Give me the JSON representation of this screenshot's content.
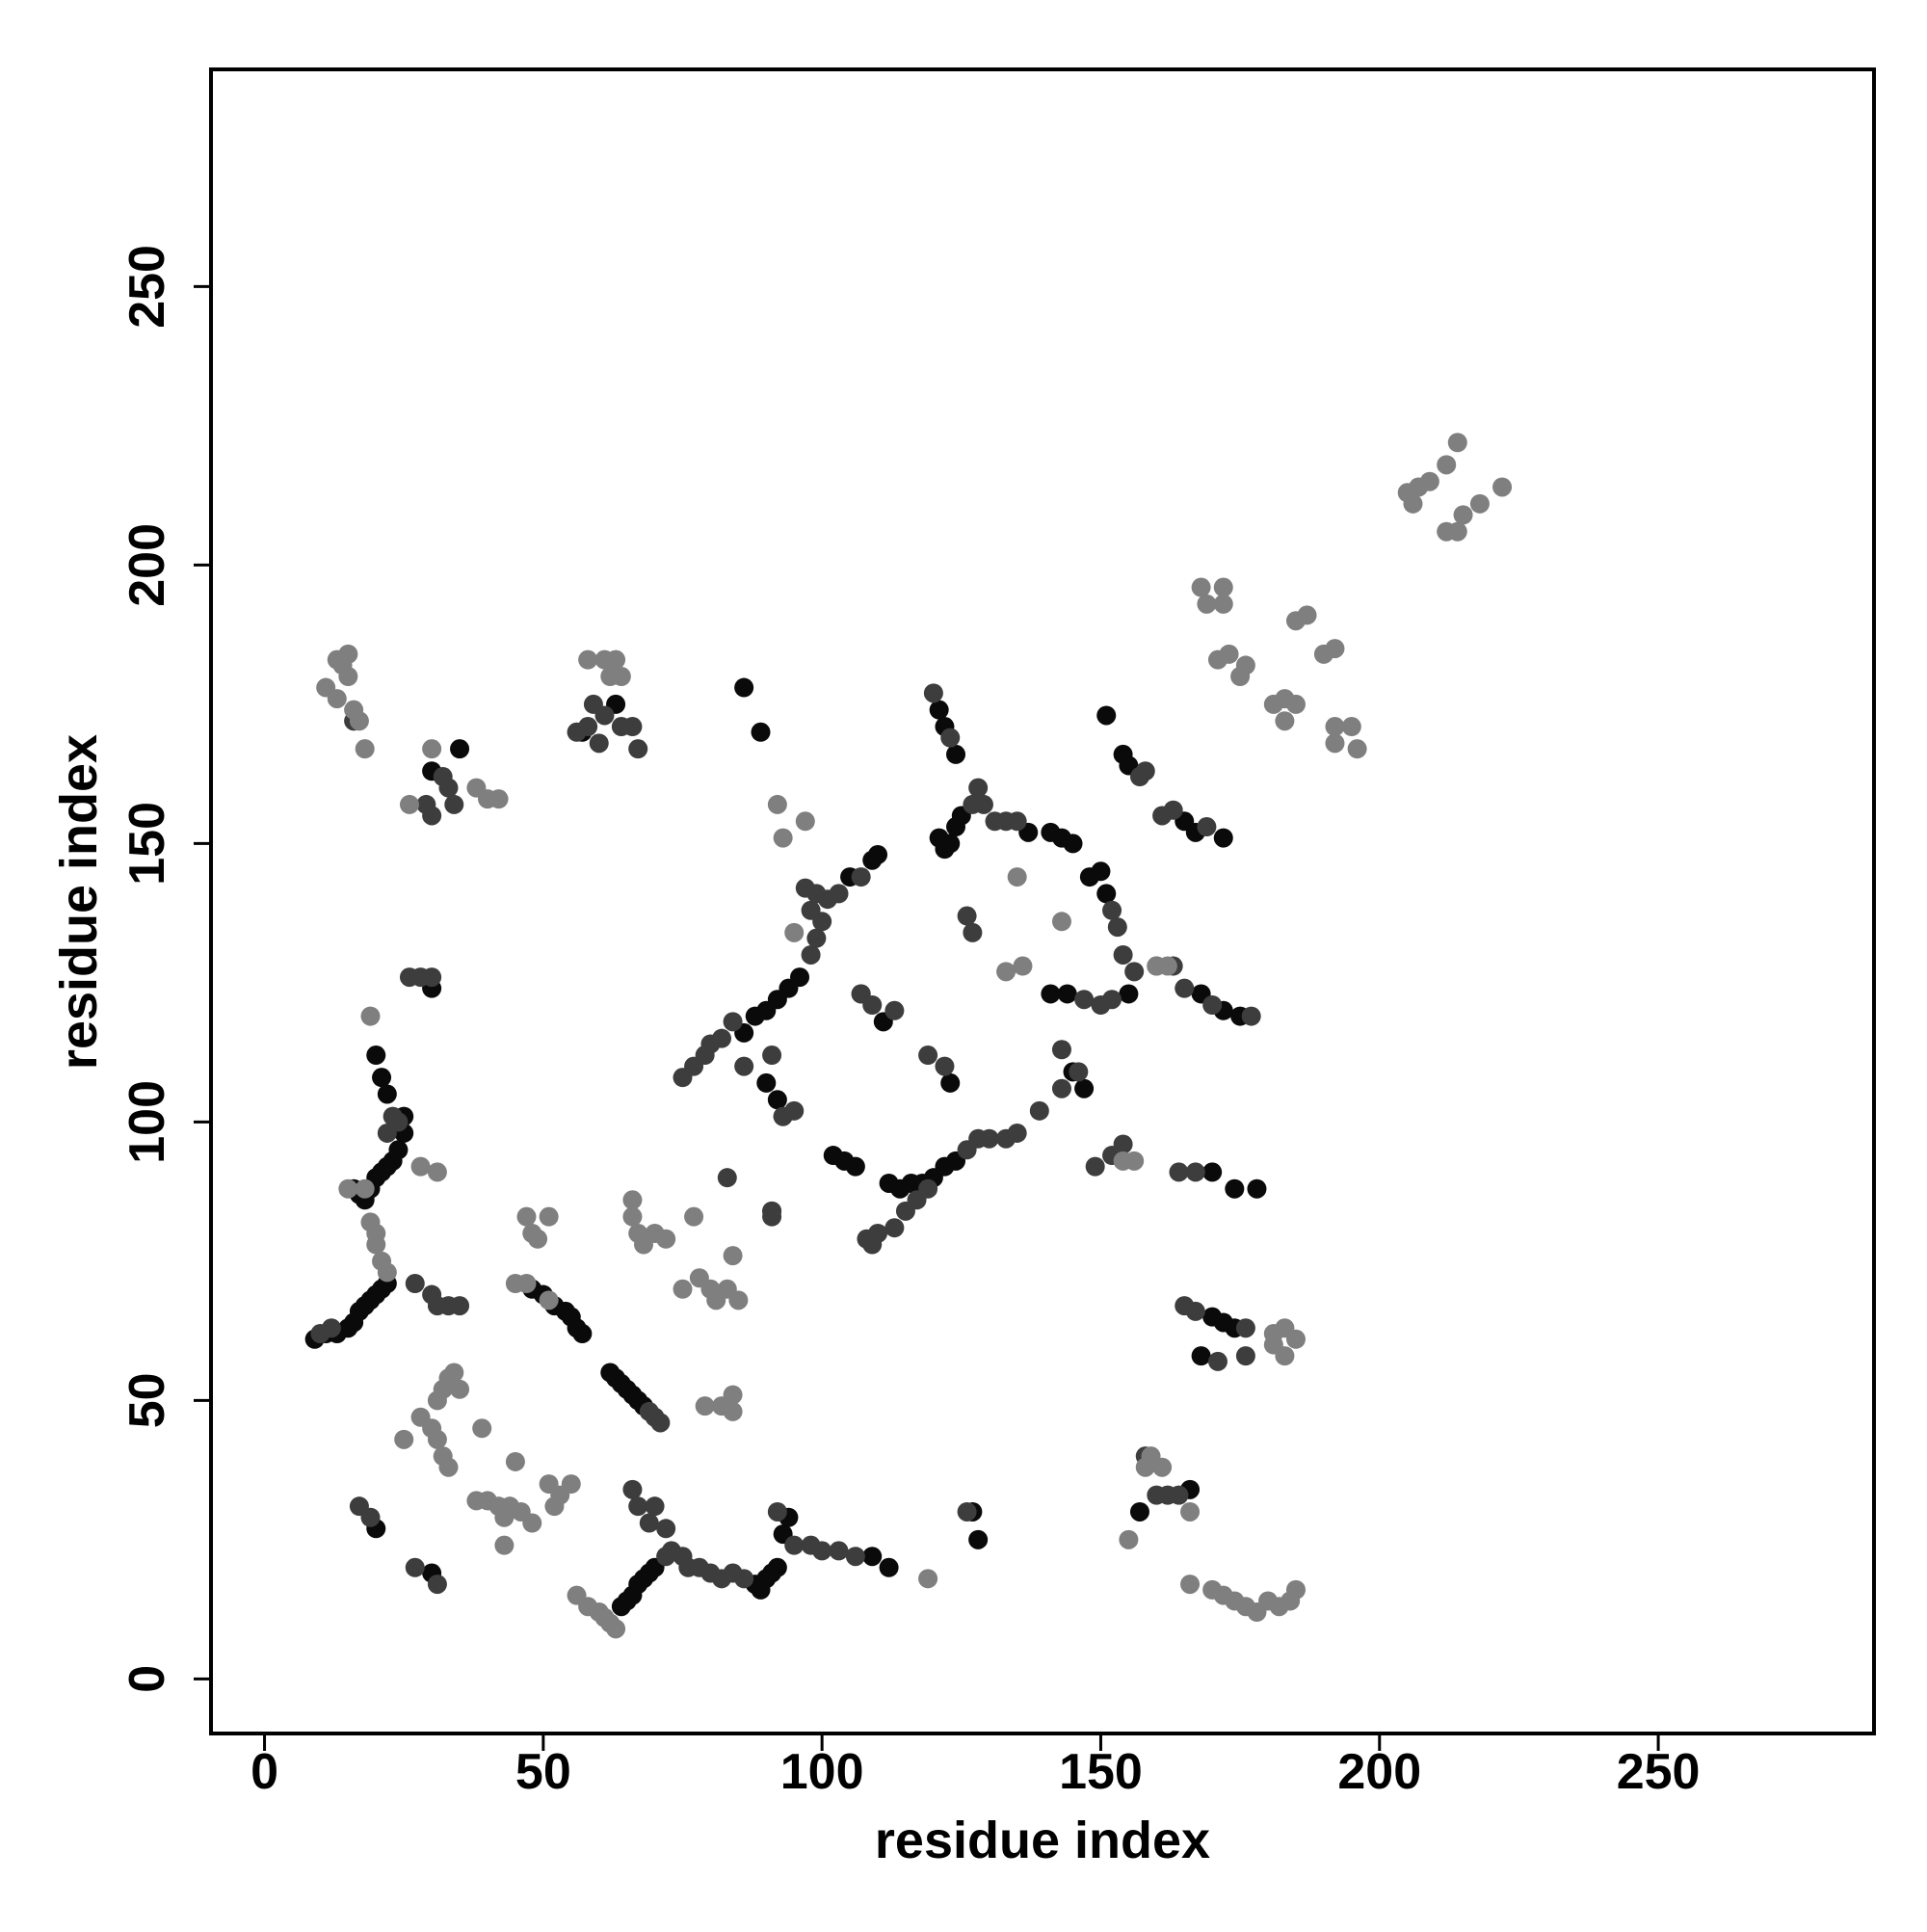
{
  "chart_data": {
    "type": "scatter",
    "xlabel": "residue index",
    "ylabel": "residue index",
    "xlim": [
      -9.6,
      288.7
    ],
    "ylim": [
      -9.8,
      289
    ],
    "xticks": [
      0,
      50,
      100,
      150,
      200,
      250
    ],
    "yticks": [
      0,
      50,
      100,
      150,
      200,
      250
    ],
    "series": [
      {
        "color": "#0a0a0a",
        "x": [
          9,
          11,
          13,
          15,
          16,
          17,
          18,
          19,
          20,
          21,
          22,
          16,
          17,
          18,
          19,
          20,
          21,
          22,
          23,
          24,
          25,
          25,
          22,
          21,
          20,
          30,
          30,
          35,
          57,
          63,
          48,
          50,
          52,
          54,
          55,
          56,
          57,
          62,
          63,
          64,
          65,
          66,
          67,
          68,
          64,
          65,
          66,
          67,
          68,
          69,
          70,
          88,
          89,
          90,
          91,
          92,
          93,
          94,
          86,
          89,
          90,
          92,
          93,
          86,
          88,
          90,
          92,
          94,
          96,
          102,
          104,
          106,
          112,
          114,
          116,
          118,
          120,
          122,
          124,
          105,
          109,
          121,
          122,
          124,
          121,
          122,
          123,
          124,
          125,
          137,
          141,
          143,
          145,
          141,
          144,
          148,
          150,
          151,
          155,
          151,
          154,
          155,
          165,
          167,
          172,
          168,
          172,
          175,
          170,
          174,
          178,
          170,
          172,
          174,
          168,
          166,
          157,
          127,
          128,
          30,
          20,
          109,
          112,
          110,
          123,
          107,
          111,
          145,
          147
        ],
        "values": [
          61,
          62,
          62,
          63,
          64,
          66,
          67,
          68,
          69,
          70,
          71,
          88,
          87,
          86,
          88,
          90,
          91,
          92,
          93,
          95,
          98,
          101,
          105,
          108,
          112,
          124,
          163,
          167,
          170,
          175,
          70,
          69,
          67,
          66,
          65,
          63,
          62,
          55,
          54,
          53,
          52,
          51,
          50,
          49,
          13,
          14,
          15,
          17,
          18,
          19,
          20,
          17,
          16,
          18,
          19,
          20,
          26,
          29,
          178,
          170,
          107,
          104,
          101,
          116,
          119,
          120,
          122,
          124,
          126,
          94,
          93,
          92,
          89,
          88,
          89,
          89,
          90,
          92,
          93,
          144,
          147,
          174,
          171,
          166,
          151,
          149,
          150,
          153,
          155,
          152,
          152,
          151,
          150,
          123,
          123,
          144,
          145,
          141,
          123,
          173,
          166,
          164,
          154,
          152,
          151,
          123,
          120,
          119,
          91,
          88,
          88,
          65,
          64,
          63,
          58,
          34,
          30,
          30,
          25,
          19,
          27,
          22,
          20,
          148,
          107,
          123,
          118,
          109,
          106
        ]
      },
      {
        "color": "#3d3d3d",
        "x": [
          12,
          10,
          23,
          24,
          22,
          26,
          28,
          30,
          30,
          31,
          27,
          33,
          35,
          16,
          29,
          30,
          32,
          33,
          34,
          56,
          58,
          59,
          61,
          64,
          66,
          67,
          60,
          69,
          70,
          71,
          17,
          19,
          27,
          31,
          66,
          67,
          69,
          70,
          72,
          72,
          73,
          75,
          76,
          78,
          80,
          82,
          84,
          86,
          95,
          98,
          100,
          103,
          106,
          91,
          92,
          75,
          77,
          79,
          80,
          82,
          84,
          98,
          99,
          100,
          98,
          99,
          101,
          103,
          107,
          86,
          91,
          93,
          95,
          97,
          108,
          110,
          126,
          128,
          130,
          133,
          135,
          139,
          143,
          107,
          109,
          113,
          115,
          117,
          119,
          109,
          113,
          119,
          122,
          120,
          123,
          127,
          128,
          129,
          131,
          133,
          135,
          126,
          127,
          152,
          153,
          154,
          156,
          152,
          150,
          147,
          143,
          146,
          149,
          152,
          154,
          157,
          158,
          161,
          163,
          169,
          160,
          163,
          165,
          170,
          177,
          164,
          167,
          165,
          167,
          176,
          171,
          176,
          158,
          160,
          162,
          164,
          126,
          91,
          91,
          83
        ],
        "values": [
          63,
          62,
          101,
          100,
          98,
          126,
          126,
          126,
          69,
          67,
          71,
          67,
          67,
          172,
          157,
          155,
          162,
          160,
          157,
          170,
          171,
          175,
          173,
          171,
          171,
          167,
          168,
          48,
          47,
          46,
          31,
          29,
          20,
          17,
          34,
          31,
          28,
          31,
          27,
          22,
          23,
          22,
          20,
          20,
          19,
          18,
          19,
          18,
          24,
          24,
          23,
          23,
          22,
          84,
          30,
          108,
          110,
          112,
          114,
          115,
          118,
          130,
          133,
          136,
          138,
          141,
          140,
          141,
          144,
          110,
          112,
          101,
          102,
          142,
          79,
          80,
          95,
          97,
          97,
          97,
          98,
          102,
          106,
          123,
          121,
          120,
          84,
          86,
          88,
          78,
          81,
          112,
          110,
          177,
          169,
          157,
          160,
          157,
          154,
          154,
          154,
          137,
          134,
          138,
          135,
          130,
          127,
          122,
          121,
          122,
          113,
          109,
          92,
          94,
          96,
          162,
          163,
          155,
          156,
          153,
          128,
          128,
          124,
          121,
          119,
          91,
          91,
          67,
          66,
          63,
          57,
          58,
          40,
          33,
          33,
          33,
          30,
          83,
          84,
          90
        ]
      },
      {
        "color": "#7f7f7f",
        "x": [
          19,
          20,
          20,
          21,
          22,
          18,
          15,
          19,
          28,
          31,
          11,
          13,
          14,
          15,
          13,
          15,
          16,
          17,
          18,
          26,
          30,
          38,
          40,
          42,
          45,
          47,
          51,
          58,
          61,
          63,
          62,
          64,
          47,
          48,
          51,
          49,
          66,
          67,
          68,
          70,
          72,
          66,
          77,
          75,
          78,
          80,
          81,
          83,
          85,
          84,
          79,
          82,
          84,
          84,
          28,
          30,
          31,
          32,
          33,
          31,
          32,
          33,
          34,
          35,
          25,
          39,
          38,
          40,
          42,
          43,
          44,
          46,
          48,
          43,
          45,
          51,
          53,
          55,
          52,
          56,
          58,
          60,
          61,
          62,
          63,
          119,
          135,
          133,
          136,
          143,
          154,
          160,
          162,
          158,
          159,
          161,
          155,
          166,
          166,
          170,
          172,
          174,
          176,
          178,
          180,
          182,
          184,
          185,
          183,
          185,
          181,
          183,
          181,
          156,
          168,
          169,
          172,
          172,
          171,
          173,
          176,
          175,
          181,
          183,
          183,
          185,
          185,
          187,
          190,
          192,
          192,
          195,
          192,
          196,
          205,
          207,
          209,
          212,
          214,
          212,
          214,
          215,
          218,
          222,
          206,
          95,
          93,
          92,
          97
        ],
        "values": [
          82,
          80,
          78,
          75,
          73,
          88,
          88,
          119,
          92,
          91,
          178,
          183,
          182,
          184,
          176,
          180,
          174,
          172,
          167,
          157,
          167,
          160,
          158,
          158,
          71,
          71,
          68,
          183,
          183,
          183,
          180,
          180,
          83,
          80,
          83,
          79,
          83,
          80,
          78,
          80,
          79,
          86,
          83,
          70,
          72,
          70,
          68,
          70,
          68,
          76,
          49,
          49,
          51,
          48,
          47,
          45,
          43,
          40,
          38,
          50,
          52,
          54,
          55,
          52,
          43,
          45,
          32,
          32,
          31,
          29,
          31,
          30,
          28,
          24,
          39,
          35,
          33,
          35,
          31,
          15,
          13,
          12,
          11,
          10,
          9,
          18,
          144,
          127,
          128,
          136,
          93,
          128,
          128,
          38,
          40,
          38,
          25,
          30,
          17,
          16,
          15,
          14,
          13,
          12,
          14,
          13,
          14,
          16,
          63,
          61,
          62,
          58,
          60,
          93,
          196,
          193,
          196,
          193,
          183,
          184,
          182,
          180,
          175,
          176,
          172,
          175,
          190,
          191,
          184,
          185,
          171,
          171,
          168,
          167,
          213,
          214,
          215,
          218,
          222,
          206,
          206,
          209,
          211,
          214,
          211,
          134,
          151,
          157,
          154
        ]
      }
    ]
  }
}
